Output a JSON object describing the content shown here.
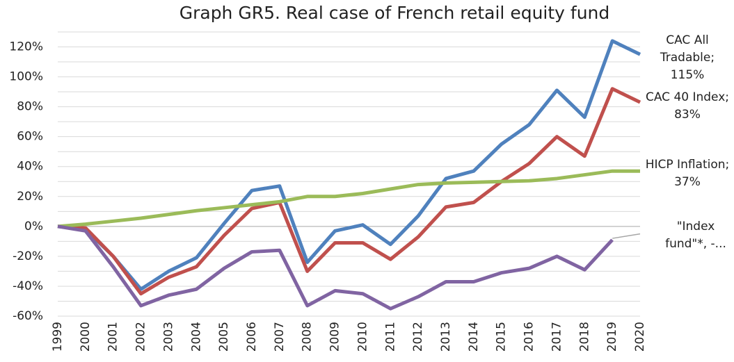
{
  "chart_data": {
    "type": "line",
    "title": "Graph GR5. Real case of French retail equity fund",
    "categories": [
      "1999",
      "2000",
      "2001",
      "2002",
      "2003",
      "2004",
      "2005",
      "2006",
      "2007",
      "2008",
      "2009",
      "2010",
      "2011",
      "2012",
      "2013",
      "2014",
      "2015",
      "2016",
      "2017",
      "2018",
      "2019",
      "2020"
    ],
    "series": [
      {
        "name": "CAC All Tradable",
        "color": "#4f81bd",
        "label_lines": [
          "CAC All",
          "Tradable;",
          "115%"
        ],
        "values": [
          0,
          -2,
          -20,
          -42,
          -30,
          -21,
          2,
          24,
          27,
          -24,
          -3,
          1,
          -12,
          7,
          32,
          37,
          55,
          68,
          91,
          73,
          124,
          115
        ]
      },
      {
        "name": "CAC 40 Index",
        "color": "#c0504d",
        "label_lines": [
          "CAC 40 Index;",
          "83%"
        ],
        "values": [
          0,
          -1,
          -20,
          -45,
          -34,
          -27,
          -6,
          12,
          16,
          -30,
          -11,
          -11,
          -22,
          -7,
          13,
          16,
          30,
          42,
          60,
          47,
          92,
          83
        ]
      },
      {
        "name": "HICP Inflation",
        "color": "#9bbb59",
        "label_lines": [
          "HICP Inflation;",
          "37%"
        ],
        "values": [
          0,
          1.5,
          3.5,
          5.5,
          8,
          10.5,
          12.5,
          14.5,
          16.5,
          20,
          20,
          22,
          25,
          28,
          29,
          29.5,
          30,
          30.5,
          32,
          34.5,
          37,
          37
        ]
      },
      {
        "name": "\"Index fund\"*",
        "color": "#8064a2",
        "label_lines": [
          "\"Index",
          "fund\"*, -..."
        ],
        "values": [
          0,
          -3,
          -27,
          -53,
          -46,
          -42,
          -28,
          -17,
          -16,
          -53,
          -43,
          -45,
          -55,
          -47,
          -37,
          -37,
          -31,
          -28,
          -20,
          -29,
          -9,
          null
        ]
      },
      {
        "color": "#a6a6a6",
        "thin": true,
        "values": [
          null,
          null,
          null,
          null,
          null,
          null,
          null,
          null,
          null,
          null,
          null,
          null,
          null,
          null,
          null,
          null,
          null,
          null,
          null,
          null,
          -8,
          -5
        ]
      }
    ],
    "ylim": [
      -60,
      130
    ],
    "yticks": [
      {
        "value": -60,
        "label": "-60%"
      },
      {
        "value": -40,
        "label": "-40%"
      },
      {
        "value": -20,
        "label": "-20%"
      },
      {
        "value": 0,
        "label": "0%"
      },
      {
        "value": 20,
        "label": "20%"
      },
      {
        "value": 40,
        "label": "40%"
      },
      {
        "value": 60,
        "label": "60%"
      },
      {
        "value": 80,
        "label": "80%"
      },
      {
        "value": 100,
        "label": "100%"
      },
      {
        "value": 120,
        "label": "120%"
      }
    ],
    "minor_yticks": [
      -50,
      -30,
      -10,
      10,
      30,
      50,
      70,
      90,
      110,
      130
    ],
    "grid": true
  }
}
